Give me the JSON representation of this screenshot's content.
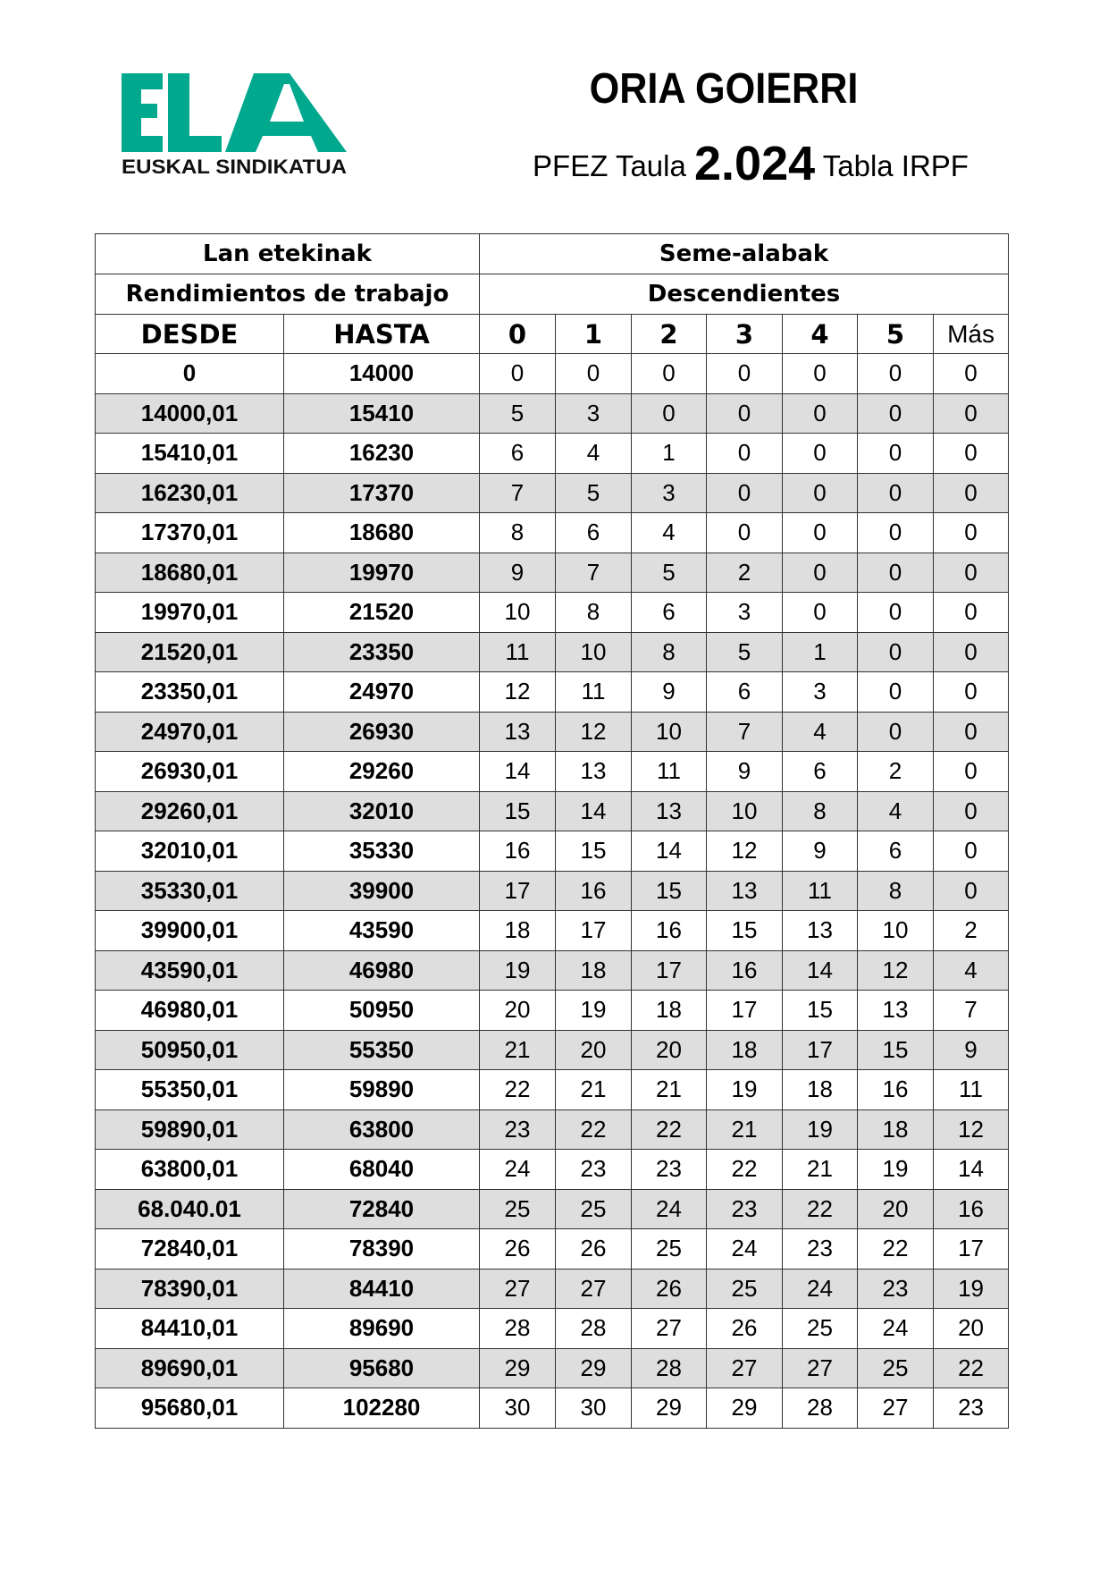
{
  "logo": {
    "text": "ELA",
    "tagline": "EUSKAL SINDIKATUA",
    "color": "#00a88e"
  },
  "header": {
    "title": "ORIA GOIERRI",
    "subtitle_pre": "PFEZ Taula",
    "year": "2.024",
    "subtitle_post": "Tabla IRPF"
  },
  "table": {
    "left_header_1": "Lan etekinak",
    "left_header_2": "Rendimientos de trabajo",
    "right_header_1": "Seme-alabak",
    "right_header_2": "Descendientes",
    "columns": [
      "DESDE",
      "HASTA",
      "0",
      "1",
      "2",
      "3",
      "4",
      "5",
      "Más"
    ],
    "rows": [
      [
        "0",
        "14000",
        "0",
        "0",
        "0",
        "0",
        "0",
        "0",
        "0"
      ],
      [
        "14000,01",
        "15410",
        "5",
        "3",
        "0",
        "0",
        "0",
        "0",
        "0"
      ],
      [
        "15410,01",
        "16230",
        "6",
        "4",
        "1",
        "0",
        "0",
        "0",
        "0"
      ],
      [
        "16230,01",
        "17370",
        "7",
        "5",
        "3",
        "0",
        "0",
        "0",
        "0"
      ],
      [
        "17370,01",
        "18680",
        "8",
        "6",
        "4",
        "0",
        "0",
        "0",
        "0"
      ],
      [
        "18680,01",
        "19970",
        "9",
        "7",
        "5",
        "2",
        "0",
        "0",
        "0"
      ],
      [
        "19970,01",
        "21520",
        "10",
        "8",
        "6",
        "3",
        "0",
        "0",
        "0"
      ],
      [
        "21520,01",
        "23350",
        "11",
        "10",
        "8",
        "5",
        "1",
        "0",
        "0"
      ],
      [
        "23350,01",
        "24970",
        "12",
        "11",
        "9",
        "6",
        "3",
        "0",
        "0"
      ],
      [
        "24970,01",
        "26930",
        "13",
        "12",
        "10",
        "7",
        "4",
        "0",
        "0"
      ],
      [
        "26930,01",
        "29260",
        "14",
        "13",
        "11",
        "9",
        "6",
        "2",
        "0"
      ],
      [
        "29260,01",
        "32010",
        "15",
        "14",
        "13",
        "10",
        "8",
        "4",
        "0"
      ],
      [
        "32010,01",
        "35330",
        "16",
        "15",
        "14",
        "12",
        "9",
        "6",
        "0"
      ],
      [
        "35330,01",
        "39900",
        "17",
        "16",
        "15",
        "13",
        "11",
        "8",
        "0"
      ],
      [
        "39900,01",
        "43590",
        "18",
        "17",
        "16",
        "15",
        "13",
        "10",
        "2"
      ],
      [
        "43590,01",
        "46980",
        "19",
        "18",
        "17",
        "16",
        "14",
        "12",
        "4"
      ],
      [
        "46980,01",
        "50950",
        "20",
        "19",
        "18",
        "17",
        "15",
        "13",
        "7"
      ],
      [
        "50950,01",
        "55350",
        "21",
        "20",
        "20",
        "18",
        "17",
        "15",
        "9"
      ],
      [
        "55350,01",
        "59890",
        "22",
        "21",
        "21",
        "19",
        "18",
        "16",
        "11"
      ],
      [
        "59890,01",
        "63800",
        "23",
        "22",
        "22",
        "21",
        "19",
        "18",
        "12"
      ],
      [
        "63800,01",
        "68040",
        "24",
        "23",
        "23",
        "22",
        "21",
        "19",
        "14"
      ],
      [
        "68.040.01",
        "72840",
        "25",
        "25",
        "24",
        "23",
        "22",
        "20",
        "16"
      ],
      [
        "72840,01",
        "78390",
        "26",
        "26",
        "25",
        "24",
        "23",
        "22",
        "17"
      ],
      [
        "78390,01",
        "84410",
        "27",
        "27",
        "26",
        "25",
        "24",
        "23",
        "19"
      ],
      [
        "84410,01",
        "89690",
        "28",
        "28",
        "27",
        "26",
        "25",
        "24",
        "20"
      ],
      [
        "89690,01",
        "95680",
        "29",
        "29",
        "28",
        "27",
        "27",
        "25",
        "22"
      ],
      [
        "95680,01",
        "102280",
        "30",
        "30",
        "29",
        "29",
        "28",
        "27",
        "23"
      ]
    ]
  }
}
